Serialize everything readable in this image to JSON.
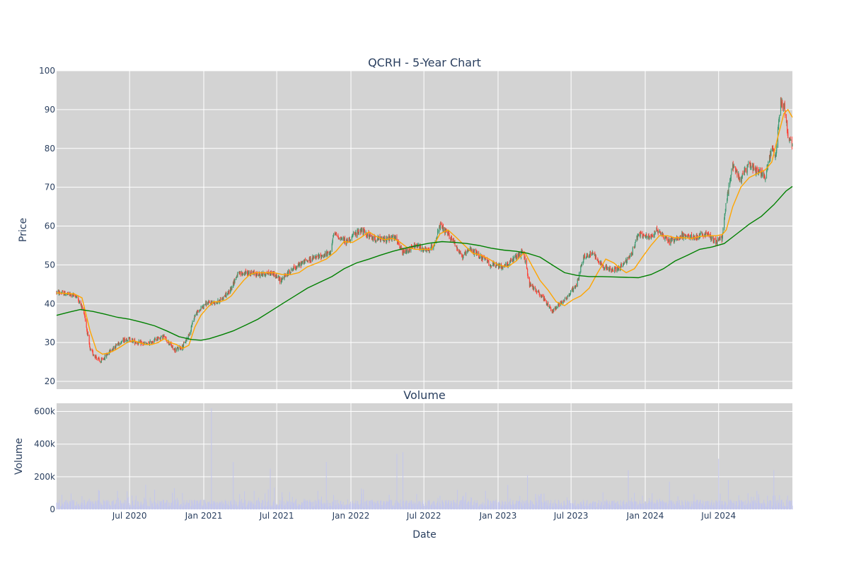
{
  "chart_data": {
    "type": "candlestick",
    "title": "QCRH - 5-Year Chart",
    "price_panel": {
      "ylabel": "Price",
      "ylim": [
        18,
        100
      ],
      "yticks": [
        20,
        30,
        40,
        50,
        60,
        70,
        80,
        90,
        100
      ],
      "up_color": "#3d9970",
      "down_color": "#ff4136",
      "series": [
        {
          "name": "",
          "color": "#ffa500",
          "points": [
            [
              "2020-01-02",
              42.8
            ],
            [
              "2020-02-15",
              42.5
            ],
            [
              "2020-03-05",
              41.5
            ],
            [
              "2020-03-25",
              33
            ],
            [
              "2020-04-10",
              28
            ],
            [
              "2020-04-25",
              27
            ],
            [
              "2020-05-10",
              27.3
            ],
            [
              "2020-05-25",
              28
            ],
            [
              "2020-06-10",
              29
            ],
            [
              "2020-06-25",
              30
            ],
            [
              "2020-07-10",
              30.5
            ],
            [
              "2020-07-25",
              30
            ],
            [
              "2020-08-10",
              29.5
            ],
            [
              "2020-08-25",
              29.5
            ],
            [
              "2020-09-10",
              30
            ],
            [
              "2020-09-25",
              31
            ],
            [
              "2020-10-10",
              30
            ],
            [
              "2020-10-25",
              29.5
            ],
            [
              "2020-11-10",
              28.5
            ],
            [
              "2020-11-25",
              29.3
            ],
            [
              "2020-12-10",
              34
            ],
            [
              "2020-12-25",
              37
            ],
            [
              "2021-01-10",
              39
            ],
            [
              "2021-01-25",
              40.5
            ],
            [
              "2021-02-10",
              40.5
            ],
            [
              "2021-02-25",
              41
            ],
            [
              "2021-03-10",
              42
            ],
            [
              "2021-03-25",
              44
            ],
            [
              "2021-04-10",
              46
            ],
            [
              "2021-04-25",
              47.5
            ],
            [
              "2021-05-10",
              48
            ],
            [
              "2021-06-01",
              48
            ],
            [
              "2021-06-25",
              48
            ],
            [
              "2021-07-15",
              47.5
            ],
            [
              "2021-08-05",
              47.5
            ],
            [
              "2021-08-25",
              48
            ],
            [
              "2021-09-15",
              49.5
            ],
            [
              "2021-10-10",
              50.5
            ],
            [
              "2021-11-01",
              51.5
            ],
            [
              "2021-11-25",
              53.5
            ],
            [
              "2021-12-15",
              56
            ],
            [
              "2022-01-05",
              55.8
            ],
            [
              "2022-01-25",
              57
            ],
            [
              "2022-02-15",
              58.5
            ],
            [
              "2022-03-05",
              57.3
            ],
            [
              "2022-03-25",
              56.5
            ],
            [
              "2022-04-15",
              56.8
            ],
            [
              "2022-05-01",
              56
            ],
            [
              "2022-05-20",
              54.5
            ],
            [
              "2022-06-10",
              54
            ],
            [
              "2022-06-30",
              54
            ],
            [
              "2022-07-20",
              54
            ],
            [
              "2022-08-10",
              58
            ],
            [
              "2022-08-30",
              59
            ],
            [
              "2022-09-20",
              57
            ],
            [
              "2022-10-10",
              55
            ],
            [
              "2022-10-30",
              53
            ],
            [
              "2022-11-20",
              52.5
            ],
            [
              "2022-12-10",
              51.5
            ],
            [
              "2023-01-01",
              50
            ],
            [
              "2023-01-25",
              49.5
            ],
            [
              "2023-02-15",
              51
            ],
            [
              "2023-03-08",
              53.3
            ],
            [
              "2023-03-25",
              50
            ],
            [
              "2023-04-15",
              46
            ],
            [
              "2023-05-05",
              43.5
            ],
            [
              "2023-05-25",
              40.5
            ],
            [
              "2023-06-15",
              39.5
            ],
            [
              "2023-07-05",
              41
            ],
            [
              "2023-07-25",
              42
            ],
            [
              "2023-08-15",
              44
            ],
            [
              "2023-09-05",
              48
            ],
            [
              "2023-09-25",
              51.5
            ],
            [
              "2023-10-15",
              50.5
            ],
            [
              "2023-11-01",
              49
            ],
            [
              "2023-11-15",
              48
            ],
            [
              "2023-12-05",
              49
            ],
            [
              "2023-12-25",
              52
            ],
            [
              "2024-01-15",
              55
            ],
            [
              "2024-02-05",
              57.5
            ],
            [
              "2024-02-25",
              57.5
            ],
            [
              "2024-03-15",
              57
            ],
            [
              "2024-04-05",
              57
            ],
            [
              "2024-04-25",
              56.8
            ],
            [
              "2024-05-15",
              57.3
            ],
            [
              "2024-06-05",
              57.5
            ],
            [
              "2024-06-25",
              57.5
            ],
            [
              "2024-07-10",
              57.8
            ],
            [
              "2024-07-20",
              59
            ],
            [
              "2024-08-05",
              65
            ],
            [
              "2024-08-25",
              70
            ],
            [
              "2024-09-15",
              72.5
            ],
            [
              "2024-10-05",
              73.5
            ],
            [
              "2024-10-25",
              74.5
            ],
            [
              "2024-11-10",
              76.5
            ],
            [
              "2024-11-25",
              83
            ],
            [
              "2024-12-10",
              89
            ],
            [
              "2024-12-20",
              90
            ],
            [
              "2024-12-31",
              88
            ]
          ]
        },
        {
          "name": "",
          "color": "#008000",
          "points": [
            [
              "2020-01-02",
              37
            ],
            [
              "2020-02-01",
              37.8
            ],
            [
              "2020-03-01",
              38.5
            ],
            [
              "2020-04-01",
              38
            ],
            [
              "2020-05-01",
              37.3
            ],
            [
              "2020-06-01",
              36.5
            ],
            [
              "2020-07-01",
              36
            ],
            [
              "2020-08-01",
              35.2
            ],
            [
              "2020-09-01",
              34.3
            ],
            [
              "2020-10-01",
              33
            ],
            [
              "2020-11-01",
              31.5
            ],
            [
              "2020-12-01",
              30.8
            ],
            [
              "2020-12-25",
              30.6
            ],
            [
              "2021-01-15",
              31
            ],
            [
              "2021-02-15",
              32
            ],
            [
              "2021-03-15",
              33
            ],
            [
              "2021-04-15",
              34.5
            ],
            [
              "2021-05-15",
              36
            ],
            [
              "2021-06-15",
              38
            ],
            [
              "2021-07-15",
              40
            ],
            [
              "2021-08-15",
              42
            ],
            [
              "2021-09-15",
              44
            ],
            [
              "2021-10-15",
              45.5
            ],
            [
              "2021-11-15",
              47
            ],
            [
              "2021-12-15",
              49
            ],
            [
              "2022-01-15",
              50.5
            ],
            [
              "2022-02-15",
              51.5
            ],
            [
              "2022-03-15",
              52.5
            ],
            [
              "2022-04-15",
              53.5
            ],
            [
              "2022-05-15",
              54.3
            ],
            [
              "2022-06-15",
              55
            ],
            [
              "2022-07-15",
              55.6
            ],
            [
              "2022-08-15",
              56
            ],
            [
              "2022-09-15",
              55.8
            ],
            [
              "2022-10-15",
              55.5
            ],
            [
              "2022-11-15",
              55
            ],
            [
              "2022-12-15",
              54.3
            ],
            [
              "2023-01-15",
              53.8
            ],
            [
              "2023-02-15",
              53.5
            ],
            [
              "2023-03-15",
              53
            ],
            [
              "2023-04-15",
              52
            ],
            [
              "2023-05-15",
              50
            ],
            [
              "2023-06-15",
              48
            ],
            [
              "2023-07-15",
              47.3
            ],
            [
              "2023-08-15",
              47
            ],
            [
              "2023-09-15",
              47
            ],
            [
              "2023-10-15",
              46.9
            ],
            [
              "2023-11-15",
              46.8
            ],
            [
              "2023-12-15",
              46.7
            ],
            [
              "2024-01-15",
              47.5
            ],
            [
              "2024-02-15",
              49
            ],
            [
              "2024-03-15",
              51
            ],
            [
              "2024-04-15",
              52.5
            ],
            [
              "2024-05-15",
              54
            ],
            [
              "2024-06-15",
              54.6
            ],
            [
              "2024-07-15",
              55.5
            ],
            [
              "2024-08-15",
              58
            ],
            [
              "2024-09-15",
              60.5
            ],
            [
              "2024-10-15",
              62.5
            ],
            [
              "2024-11-15",
              65.5
            ],
            [
              "2024-12-15",
              69
            ],
            [
              "2024-12-31",
              70.2
            ]
          ]
        }
      ],
      "candle_path": [
        [
          "2020-01-02",
          43
        ],
        [
          "2020-02-20",
          42
        ],
        [
          "2020-03-10",
          38
        ],
        [
          "2020-03-25",
          28
        ],
        [
          "2020-04-20",
          25
        ],
        [
          "2020-05-15",
          28
        ],
        [
          "2020-06-05",
          30
        ],
        [
          "2020-06-25",
          31
        ],
        [
          "2020-07-20",
          30
        ],
        [
          "2020-08-15",
          29.5
        ],
        [
          "2020-09-05",
          31
        ],
        [
          "2020-09-25",
          31.5
        ],
        [
          "2020-10-20",
          28
        ],
        [
          "2020-11-10",
          29
        ],
        [
          "2020-11-25",
          32
        ],
        [
          "2020-12-10",
          37
        ],
        [
          "2021-01-05",
          40
        ],
        [
          "2021-02-05",
          40.5
        ],
        [
          "2021-03-05",
          43
        ],
        [
          "2021-03-25",
          47.5
        ],
        [
          "2021-04-20",
          48
        ],
        [
          "2021-05-20",
          47.5
        ],
        [
          "2021-06-20",
          48
        ],
        [
          "2021-07-10",
          46
        ],
        [
          "2021-08-10",
          49
        ],
        [
          "2021-09-10",
          51
        ],
        [
          "2021-10-10",
          52
        ],
        [
          "2021-11-10",
          53
        ],
        [
          "2021-11-20",
          58
        ],
        [
          "2021-12-20",
          56
        ],
        [
          "2022-01-25",
          59
        ],
        [
          "2022-02-20",
          57
        ],
        [
          "2022-03-20",
          56.5
        ],
        [
          "2022-04-20",
          57
        ],
        [
          "2022-05-10",
          53
        ],
        [
          "2022-06-10",
          55
        ],
        [
          "2022-07-10",
          53.5
        ],
        [
          "2022-07-25",
          55
        ],
        [
          "2022-08-10",
          60
        ],
        [
          "2022-09-10",
          56.5
        ],
        [
          "2022-10-05",
          52
        ],
        [
          "2022-10-25",
          54
        ],
        [
          "2022-11-20",
          52
        ],
        [
          "2022-12-15",
          50
        ],
        [
          "2023-01-15",
          49.5
        ],
        [
          "2023-02-15",
          52
        ],
        [
          "2023-03-05",
          53.5
        ],
        [
          "2023-03-20",
          45
        ],
        [
          "2023-04-20",
          42
        ],
        [
          "2023-05-15",
          38
        ],
        [
          "2023-06-01",
          40
        ],
        [
          "2023-06-20",
          41.5
        ],
        [
          "2023-07-15",
          45
        ],
        [
          "2023-08-01",
          52
        ],
        [
          "2023-08-25",
          53
        ],
        [
          "2023-09-15",
          50
        ],
        [
          "2023-10-10",
          48.5
        ],
        [
          "2023-11-01",
          49.5
        ],
        [
          "2023-11-25",
          52
        ],
        [
          "2023-12-15",
          58
        ],
        [
          "2024-01-10",
          57
        ],
        [
          "2024-02-01",
          59
        ],
        [
          "2024-03-01",
          56
        ],
        [
          "2024-04-01",
          57.5
        ],
        [
          "2024-05-01",
          57
        ],
        [
          "2024-06-01",
          58
        ],
        [
          "2024-06-25",
          56
        ],
        [
          "2024-07-10",
          57
        ],
        [
          "2024-07-20",
          66
        ],
        [
          "2024-08-05",
          76
        ],
        [
          "2024-08-25",
          72
        ],
        [
          "2024-09-15",
          76
        ],
        [
          "2024-10-05",
          74
        ],
        [
          "2024-10-25",
          73
        ],
        [
          "2024-11-10",
          80
        ],
        [
          "2024-11-20",
          78
        ],
        [
          "2024-12-01",
          92
        ],
        [
          "2024-12-10",
          91
        ],
        [
          "2024-12-15",
          88
        ],
        [
          "2024-12-22",
          82
        ],
        [
          "2024-12-31",
          81
        ]
      ]
    },
    "volume_panel": {
      "title": "Volume",
      "ylabel": "Volume",
      "ylim": [
        0,
        650000
      ],
      "yticks": [
        [
          0,
          "0"
        ],
        [
          200000,
          "200k"
        ],
        [
          400000,
          "400k"
        ],
        [
          600000,
          "600k"
        ]
      ],
      "bar_color": "#c3c6ec",
      "spikes": [
        [
          "2020-04-15",
          120000
        ],
        [
          "2020-08-10",
          150000
        ],
        [
          "2020-10-20",
          130000
        ],
        [
          "2020-12-20",
          260000
        ],
        [
          "2021-01-20",
          620000
        ],
        [
          "2021-03-15",
          290000
        ],
        [
          "2021-06-15",
          250000
        ],
        [
          "2021-11-01",
          290000
        ],
        [
          "2022-04-25",
          340000
        ],
        [
          "2022-05-10",
          350000
        ],
        [
          "2022-08-20",
          200000
        ],
        [
          "2023-01-25",
          150000
        ],
        [
          "2023-03-15",
          210000
        ],
        [
          "2023-08-05",
          210000
        ],
        [
          "2023-11-20",
          240000
        ],
        [
          "2024-03-01",
          170000
        ],
        [
          "2024-07-01",
          310000
        ],
        [
          "2024-07-25",
          180000
        ],
        [
          "2024-11-15",
          240000
        ]
      ]
    },
    "xlabel": "Date",
    "xrange": [
      "2020-01-02",
      "2024-12-31"
    ],
    "xticks": [
      [
        "2020-07-01",
        "Jul 2020"
      ],
      [
        "2021-01-01",
        "Jan 2021"
      ],
      [
        "2021-07-01",
        "Jul 2021"
      ],
      [
        "2022-01-01",
        "Jan 2022"
      ],
      [
        "2022-07-01",
        "Jul 2022"
      ],
      [
        "2023-01-01",
        "Jan 2023"
      ],
      [
        "2023-07-01",
        "Jul 2023"
      ],
      [
        "2024-01-01",
        "Jan 2024"
      ],
      [
        "2024-07-01",
        "Jul 2024"
      ]
    ],
    "grid": true,
    "plot_bg": "#d3d3d3"
  }
}
